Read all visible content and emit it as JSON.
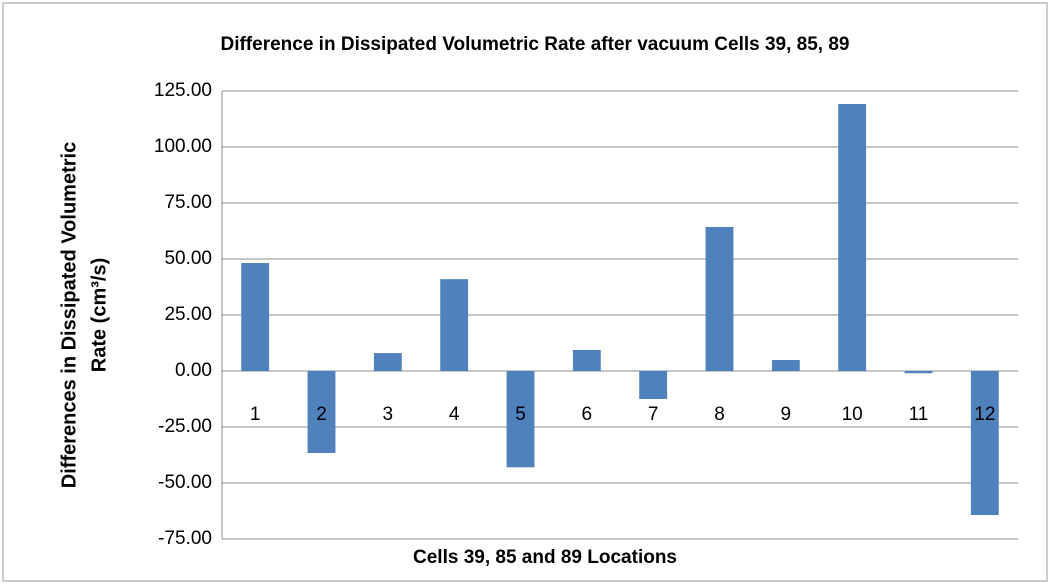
{
  "chart_data": {
    "type": "bar",
    "title": "Difference in Dissipated Volumetric Rate after vacuum Cells 39, 85, 89",
    "xlabel": "Cells 39, 85 and 89 Locations",
    "ylabel": [
      "Differences in Dissipated Volumetric",
      "Rate (cm³/s)"
    ],
    "categories": [
      "1",
      "2",
      "3",
      "4",
      "5",
      "6",
      "7",
      "8",
      "9",
      "10",
      "11",
      "12"
    ],
    "values": [
      48.2,
      -36.6,
      8,
      41,
      -43,
      9.4,
      -12.5,
      64.3,
      4.9,
      119.2,
      -1,
      -64.3
    ],
    "color": "#4f81bd",
    "ylim": [
      -75,
      125
    ],
    "yticks": [
      {
        "value": -75,
        "label": "-75.00"
      },
      {
        "value": -50,
        "label": "-50.00"
      },
      {
        "value": -25,
        "label": "-25.00"
      },
      {
        "value": 0,
        "label": "0.00"
      },
      {
        "value": 25,
        "label": "25.00"
      },
      {
        "value": 50,
        "label": "50.00"
      },
      {
        "value": 75,
        "label": "75.00"
      },
      {
        "value": 100,
        "label": "100.00"
      },
      {
        "value": 125,
        "label": "125.00"
      }
    ],
    "grid": true
  }
}
